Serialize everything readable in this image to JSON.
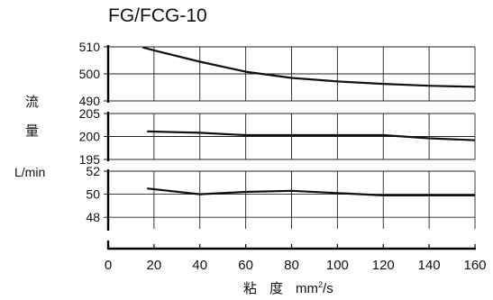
{
  "chart_data": {
    "type": "line",
    "title": "FG/FCG-10",
    "ylabel": {
      "chars": [
        "流",
        "量"
      ],
      "unit": "L/min"
    },
    "xlabel": {
      "chars": "粘度",
      "unit_base": "mm",
      "unit_sup": "2",
      "unit_tail": "/s"
    },
    "x_ticks": [
      0,
      20,
      40,
      60,
      80,
      100,
      120,
      140,
      160
    ],
    "xlim": [
      0,
      160
    ],
    "grid": true,
    "panels": [
      {
        "ylim": [
          490,
          510
        ],
        "y_ticks": [
          490,
          500,
          510
        ],
        "series": {
          "x": [
            15,
            20,
            40,
            60,
            80,
            100,
            120,
            140,
            160
          ],
          "y": [
            509.8,
            508.7,
            504.5,
            500.8,
            498.5,
            497.2,
            496.3,
            495.6,
            495.2
          ]
        }
      },
      {
        "ylim": [
          195,
          205
        ],
        "y_ticks": [
          195,
          200,
          205
        ],
        "series": {
          "x": [
            17,
            40,
            60,
            80,
            100,
            120,
            140,
            160
          ],
          "y": [
            201.1,
            200.8,
            200.3,
            200.3,
            200.3,
            200.3,
            199.6,
            199.2
          ]
        }
      },
      {
        "ylim": [
          47,
          52
        ],
        "y_ticks": [
          48,
          50,
          52
        ],
        "series": {
          "x": [
            17,
            40,
            60,
            80,
            100,
            120,
            140,
            160
          ],
          "y": [
            50.5,
            50.0,
            50.2,
            50.3,
            50.1,
            49.9,
            49.9,
            49.9
          ]
        }
      }
    ]
  }
}
